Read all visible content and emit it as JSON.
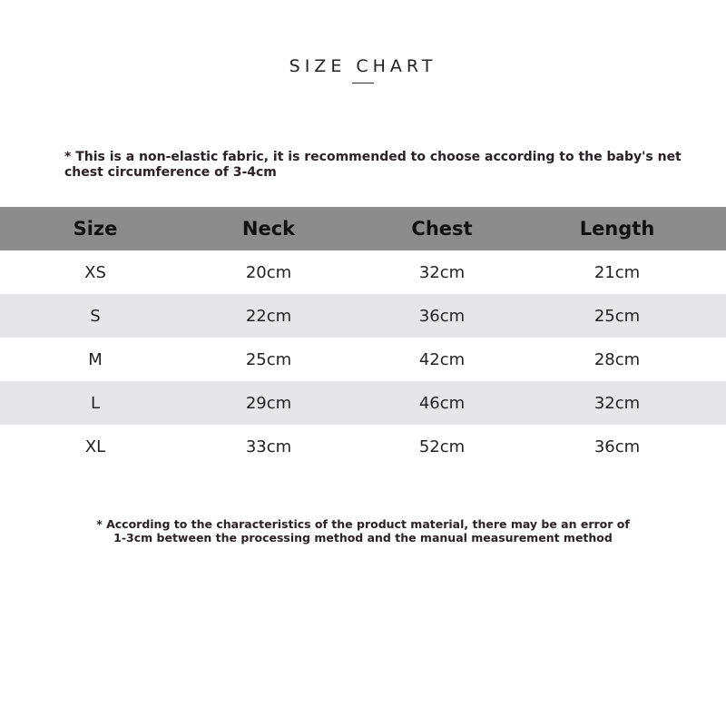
{
  "title": "SIZE CHART",
  "note_top": "* This is a non-elastic fabric, it is recommended to choose according to the baby's net chest circumference of 3-4cm",
  "table": {
    "headers": [
      "Size",
      "Neck",
      "Chest",
      "Length"
    ],
    "rows": [
      [
        "XS",
        "20cm",
        "32cm",
        "21cm"
      ],
      [
        "S",
        "22cm",
        "36cm",
        "25cm"
      ],
      [
        "M",
        "25cm",
        "42cm",
        "28cm"
      ],
      [
        "L",
        "29cm",
        "46cm",
        "32cm"
      ],
      [
        "XL",
        "33cm",
        "52cm",
        "36cm"
      ]
    ]
  },
  "note_bottom_line1": "* According to the characteristics of the product material, there may be an error of",
  "note_bottom_line2": "1-3cm between the processing method and the manual measurement method",
  "colors": {
    "header_bg": "#8c8c8c",
    "alt_row_bg": "#e6e6e8"
  }
}
